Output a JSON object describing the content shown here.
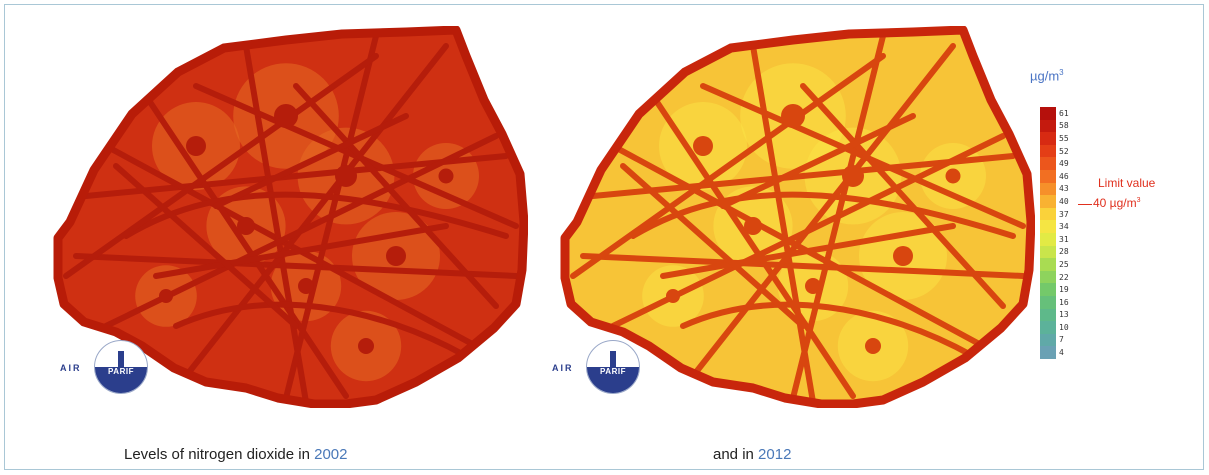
{
  "maps": [
    {
      "id": "2002",
      "caption_text": "Levels of nitrogen dioxide in ",
      "caption_year": "2002",
      "fill": "#cf3012",
      "street_color": "#b51d0b",
      "area_color": "#e86b22",
      "ring_color": "#b81c08"
    },
    {
      "id": "2012",
      "caption_text": "and in ",
      "caption_year": "2012",
      "fill": "#f7c437",
      "street_color": "#d8460f",
      "area_color": "#fbe146",
      "ring_color": "#c8260c"
    }
  ],
  "logo": {
    "prefix": "AIR",
    "badge": "PARIF"
  },
  "legend": {
    "unit": "µg/m",
    "unit_exp": "3",
    "levels": [
      {
        "label": "61",
        "color": "#b5100c"
      },
      {
        "label": "58",
        "color": "#c41a0e"
      },
      {
        "label": "55",
        "color": "#d72a12"
      },
      {
        "label": "52",
        "color": "#e43e16"
      },
      {
        "label": "49",
        "color": "#ec561c"
      },
      {
        "label": "46",
        "color": "#f26f22"
      },
      {
        "label": "43",
        "color": "#f6902a"
      },
      {
        "label": "40",
        "color": "#f9b232"
      },
      {
        "label": "37",
        "color": "#fad23a"
      },
      {
        "label": "34",
        "color": "#f5e543"
      },
      {
        "label": "31",
        "color": "#e2ea45"
      },
      {
        "label": "28",
        "color": "#c9e54b"
      },
      {
        "label": "25",
        "color": "#a9dc52"
      },
      {
        "label": "22",
        "color": "#8ed35d"
      },
      {
        "label": "19",
        "color": "#74c96a"
      },
      {
        "label": "16",
        "color": "#66c07a"
      },
      {
        "label": "13",
        "color": "#5eb98a"
      },
      {
        "label": "10",
        "color": "#5cb29a"
      },
      {
        "label": "7",
        "color": "#60a9a8"
      },
      {
        "label": "4",
        "color": "#6aa1b4"
      }
    ],
    "limit_title": "Limit value",
    "limit_value": "40 µg/m",
    "limit_exp": "3"
  }
}
